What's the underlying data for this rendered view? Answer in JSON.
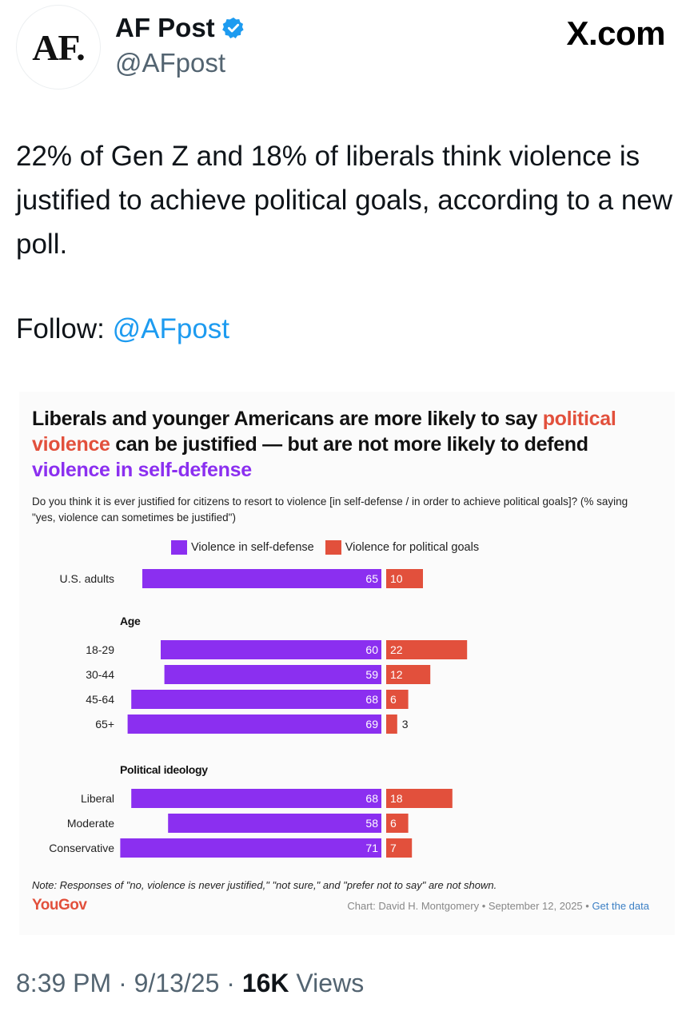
{
  "header": {
    "avatar_text": "AF.",
    "display_name": "AF Post",
    "handle": "@AFpost",
    "site_label": "X.com"
  },
  "tweet": {
    "text": "22% of Gen Z and 18% of liberals think violence is justified to achieve political goals, according to a new poll.",
    "follow_prefix": "Follow: ",
    "follow_mention": "@AFpost"
  },
  "chart_card": {
    "title_part1": "Liberals and younger Americans are more likely to say ",
    "title_red": "political violence",
    "title_part2": " can be justified — but are not more likely to defend ",
    "title_purple": "violence in self-defense",
    "question": "Do you think it is ever justified for citizens to resort to violence [in self-defense / in order to achieve political goals]? (% saying \"yes, violence can sometimes be justified\")",
    "note": "Note: Responses of \"no, violence is never justified,\" \"not sure,\" and \"prefer not to say\" are not shown.",
    "brand": "YouGov",
    "credit": "Chart: David H. Montgomery • September 12, 2025 • ",
    "credit_link": "Get the data",
    "colors": {
      "self_defense": "#8b2ff0",
      "political": "#e2503c"
    }
  },
  "chart_data": {
    "type": "bar",
    "orientation": "horizontal-diverging",
    "series_names": [
      "Violence in self-defense",
      "Violence for political goals"
    ],
    "groups": [
      {
        "label": "",
        "rows": [
          {
            "category": "U.S. adults",
            "self_defense": 65,
            "political": 10
          }
        ]
      },
      {
        "label": "Age",
        "rows": [
          {
            "category": "18-29",
            "self_defense": 60,
            "political": 22
          },
          {
            "category": "30-44",
            "self_defense": 59,
            "political": 12
          },
          {
            "category": "45-64",
            "self_defense": 68,
            "political": 6
          },
          {
            "category": "65+",
            "self_defense": 69,
            "political": 3
          }
        ]
      },
      {
        "label": "Political ideology",
        "rows": [
          {
            "category": "Liberal",
            "self_defense": 68,
            "political": 18
          },
          {
            "category": "Moderate",
            "self_defense": 58,
            "political": 6
          },
          {
            "category": "Conservative",
            "self_defense": 71,
            "political": 7
          }
        ]
      }
    ]
  },
  "footer": {
    "time": "8:39 PM",
    "date": "9/13/25",
    "views_count": "16K",
    "views_label": "Views",
    "separator": " · "
  }
}
